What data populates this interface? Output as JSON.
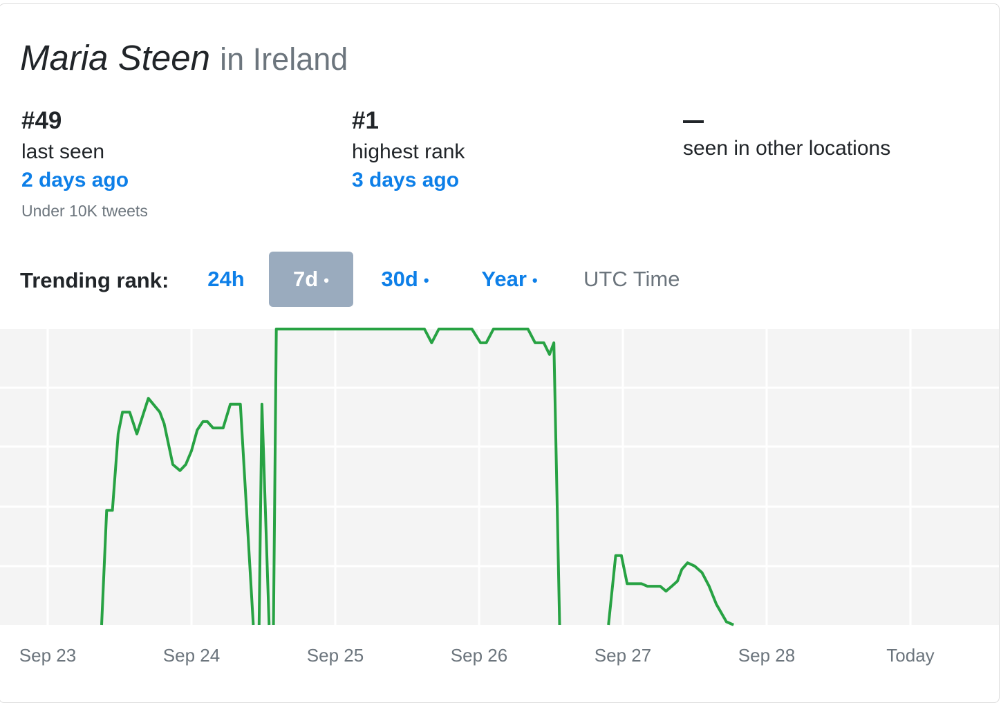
{
  "header": {
    "name": "Maria Steen",
    "location_text": "in Ireland"
  },
  "stats": [
    {
      "value": "#49",
      "label": "last seen",
      "when": "2 days ago",
      "note": "Under 10K tweets"
    },
    {
      "value": "#1",
      "label": "highest rank",
      "when": "3 days ago"
    },
    {
      "value": "—",
      "label": "seen in other locations"
    }
  ],
  "range_tabs": {
    "label": "Trending rank:",
    "tabs": [
      {
        "label": "24h",
        "dot": ""
      },
      {
        "label": "7d",
        "dot": "•"
      },
      {
        "label": "30d",
        "dot": "•"
      },
      {
        "label": "Year",
        "dot": "•"
      }
    ],
    "active_index": 1,
    "timezone": "UTC Time"
  },
  "colors": {
    "line": "#27a243",
    "plot_bg": "#f4f4f4",
    "grid": "#ffffff",
    "link": "#0d7fe8",
    "active_tab_bg": "#9aabbe"
  },
  "chart_data": {
    "type": "line",
    "x_ticks": [
      "Sep 23",
      "Sep 24",
      "Sep 25",
      "Sep 26",
      "Sep 27",
      "Sep 28",
      "Today"
    ],
    "x_unit": "days after Sep 23 00:00 UTC",
    "y_unit": "trending rank",
    "y_range": [
      1,
      50
    ],
    "y_inverted": true,
    "y_scale": "log",
    "grid": true,
    "series": [
      {
        "values": [
          {
            "x": 0.37,
            "y": null
          },
          {
            "x": 0.375,
            "y": 50
          },
          {
            "x": 0.41,
            "y": 11
          },
          {
            "x": 0.45,
            "y": 11
          },
          {
            "x": 0.49,
            "y": 4
          },
          {
            "x": 0.52,
            "y": 3
          },
          {
            "x": 0.57,
            "y": 3
          },
          {
            "x": 0.62,
            "y": 4
          },
          {
            "x": 0.7,
            "y": 2.5
          },
          {
            "x": 0.78,
            "y": 3
          },
          {
            "x": 0.81,
            "y": 3.5
          },
          {
            "x": 0.87,
            "y": 6
          },
          {
            "x": 0.92,
            "y": 6.5
          },
          {
            "x": 0.96,
            "y": 6
          },
          {
            "x": 1.0,
            "y": 5
          },
          {
            "x": 1.04,
            "y": 3.8
          },
          {
            "x": 1.08,
            "y": 3.4
          },
          {
            "x": 1.11,
            "y": 3.4
          },
          {
            "x": 1.15,
            "y": 3.7
          },
          {
            "x": 1.22,
            "y": 3.7
          },
          {
            "x": 1.27,
            "y": 2.7
          },
          {
            "x": 1.34,
            "y": 2.7
          },
          {
            "x": 1.43,
            "y": 50
          },
          {
            "x": 1.45,
            "y": null
          },
          {
            "x": 1.47,
            "y": 50
          },
          {
            "x": 1.49,
            "y": 2.7
          },
          {
            "x": 1.54,
            "y": 50
          },
          {
            "x": 1.55,
            "y": null
          },
          {
            "x": 1.57,
            "y": 50
          },
          {
            "x": 1.59,
            "y": 1
          },
          {
            "x": 2.0,
            "y": 1
          },
          {
            "x": 2.62,
            "y": 1
          },
          {
            "x": 2.67,
            "y": 1.2
          },
          {
            "x": 2.72,
            "y": 1
          },
          {
            "x": 2.95,
            "y": 1
          },
          {
            "x": 3.01,
            "y": 1.2
          },
          {
            "x": 3.05,
            "y": 1.2
          },
          {
            "x": 3.1,
            "y": 1
          },
          {
            "x": 3.34,
            "y": 1
          },
          {
            "x": 3.39,
            "y": 1.2
          },
          {
            "x": 3.45,
            "y": 1.2
          },
          {
            "x": 3.49,
            "y": 1.4
          },
          {
            "x": 3.52,
            "y": 1.2
          },
          {
            "x": 3.56,
            "y": 50
          },
          {
            "x": 3.58,
            "y": null
          },
          {
            "x": 3.88,
            "y": null
          },
          {
            "x": 3.9,
            "y": 50
          },
          {
            "x": 3.95,
            "y": 20
          },
          {
            "x": 3.99,
            "y": 20
          },
          {
            "x": 4.03,
            "y": 29
          },
          {
            "x": 4.13,
            "y": 29
          },
          {
            "x": 4.17,
            "y": 30
          },
          {
            "x": 4.22,
            "y": 30
          },
          {
            "x": 4.26,
            "y": 30
          },
          {
            "x": 4.3,
            "y": 32
          },
          {
            "x": 4.34,
            "y": 30
          },
          {
            "x": 4.38,
            "y": 28
          },
          {
            "x": 4.41,
            "y": 24
          },
          {
            "x": 4.45,
            "y": 22
          },
          {
            "x": 4.5,
            "y": 23
          },
          {
            "x": 4.55,
            "y": 25
          },
          {
            "x": 4.6,
            "y": 30
          },
          {
            "x": 4.65,
            "y": 38
          },
          {
            "x": 4.72,
            "y": 48
          },
          {
            "x": 4.77,
            "y": 50
          }
        ]
      }
    ]
  }
}
